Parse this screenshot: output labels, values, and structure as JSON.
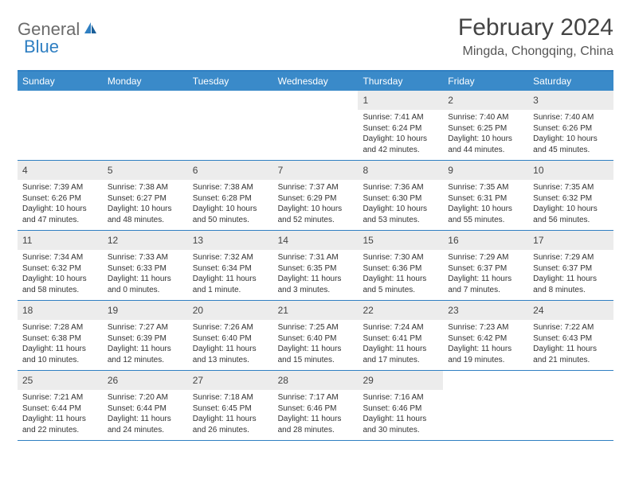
{
  "logo": {
    "text1": "General",
    "text2": "Blue"
  },
  "title": "February 2024",
  "location": "Mingda, Chongqing, China",
  "colors": {
    "header_bg": "#3a8ac9",
    "border": "#2f7fc2",
    "daynum_bg": "#ececec",
    "text": "#333333",
    "logo_gray": "#6b6b6b",
    "logo_blue": "#2f7fc2"
  },
  "dayNames": [
    "Sunday",
    "Monday",
    "Tuesday",
    "Wednesday",
    "Thursday",
    "Friday",
    "Saturday"
  ],
  "weeks": [
    [
      {
        "day": "",
        "sunrise": "",
        "sunset": "",
        "daylight": ""
      },
      {
        "day": "",
        "sunrise": "",
        "sunset": "",
        "daylight": ""
      },
      {
        "day": "",
        "sunrise": "",
        "sunset": "",
        "daylight": ""
      },
      {
        "day": "",
        "sunrise": "",
        "sunset": "",
        "daylight": ""
      },
      {
        "day": "1",
        "sunrise": "Sunrise: 7:41 AM",
        "sunset": "Sunset: 6:24 PM",
        "daylight": "Daylight: 10 hours and 42 minutes."
      },
      {
        "day": "2",
        "sunrise": "Sunrise: 7:40 AM",
        "sunset": "Sunset: 6:25 PM",
        "daylight": "Daylight: 10 hours and 44 minutes."
      },
      {
        "day": "3",
        "sunrise": "Sunrise: 7:40 AM",
        "sunset": "Sunset: 6:26 PM",
        "daylight": "Daylight: 10 hours and 45 minutes."
      }
    ],
    [
      {
        "day": "4",
        "sunrise": "Sunrise: 7:39 AM",
        "sunset": "Sunset: 6:26 PM",
        "daylight": "Daylight: 10 hours and 47 minutes."
      },
      {
        "day": "5",
        "sunrise": "Sunrise: 7:38 AM",
        "sunset": "Sunset: 6:27 PM",
        "daylight": "Daylight: 10 hours and 48 minutes."
      },
      {
        "day": "6",
        "sunrise": "Sunrise: 7:38 AM",
        "sunset": "Sunset: 6:28 PM",
        "daylight": "Daylight: 10 hours and 50 minutes."
      },
      {
        "day": "7",
        "sunrise": "Sunrise: 7:37 AM",
        "sunset": "Sunset: 6:29 PM",
        "daylight": "Daylight: 10 hours and 52 minutes."
      },
      {
        "day": "8",
        "sunrise": "Sunrise: 7:36 AM",
        "sunset": "Sunset: 6:30 PM",
        "daylight": "Daylight: 10 hours and 53 minutes."
      },
      {
        "day": "9",
        "sunrise": "Sunrise: 7:35 AM",
        "sunset": "Sunset: 6:31 PM",
        "daylight": "Daylight: 10 hours and 55 minutes."
      },
      {
        "day": "10",
        "sunrise": "Sunrise: 7:35 AM",
        "sunset": "Sunset: 6:32 PM",
        "daylight": "Daylight: 10 hours and 56 minutes."
      }
    ],
    [
      {
        "day": "11",
        "sunrise": "Sunrise: 7:34 AM",
        "sunset": "Sunset: 6:32 PM",
        "daylight": "Daylight: 10 hours and 58 minutes."
      },
      {
        "day": "12",
        "sunrise": "Sunrise: 7:33 AM",
        "sunset": "Sunset: 6:33 PM",
        "daylight": "Daylight: 11 hours and 0 minutes."
      },
      {
        "day": "13",
        "sunrise": "Sunrise: 7:32 AM",
        "sunset": "Sunset: 6:34 PM",
        "daylight": "Daylight: 11 hours and 1 minute."
      },
      {
        "day": "14",
        "sunrise": "Sunrise: 7:31 AM",
        "sunset": "Sunset: 6:35 PM",
        "daylight": "Daylight: 11 hours and 3 minutes."
      },
      {
        "day": "15",
        "sunrise": "Sunrise: 7:30 AM",
        "sunset": "Sunset: 6:36 PM",
        "daylight": "Daylight: 11 hours and 5 minutes."
      },
      {
        "day": "16",
        "sunrise": "Sunrise: 7:29 AM",
        "sunset": "Sunset: 6:37 PM",
        "daylight": "Daylight: 11 hours and 7 minutes."
      },
      {
        "day": "17",
        "sunrise": "Sunrise: 7:29 AM",
        "sunset": "Sunset: 6:37 PM",
        "daylight": "Daylight: 11 hours and 8 minutes."
      }
    ],
    [
      {
        "day": "18",
        "sunrise": "Sunrise: 7:28 AM",
        "sunset": "Sunset: 6:38 PM",
        "daylight": "Daylight: 11 hours and 10 minutes."
      },
      {
        "day": "19",
        "sunrise": "Sunrise: 7:27 AM",
        "sunset": "Sunset: 6:39 PM",
        "daylight": "Daylight: 11 hours and 12 minutes."
      },
      {
        "day": "20",
        "sunrise": "Sunrise: 7:26 AM",
        "sunset": "Sunset: 6:40 PM",
        "daylight": "Daylight: 11 hours and 13 minutes."
      },
      {
        "day": "21",
        "sunrise": "Sunrise: 7:25 AM",
        "sunset": "Sunset: 6:40 PM",
        "daylight": "Daylight: 11 hours and 15 minutes."
      },
      {
        "day": "22",
        "sunrise": "Sunrise: 7:24 AM",
        "sunset": "Sunset: 6:41 PM",
        "daylight": "Daylight: 11 hours and 17 minutes."
      },
      {
        "day": "23",
        "sunrise": "Sunrise: 7:23 AM",
        "sunset": "Sunset: 6:42 PM",
        "daylight": "Daylight: 11 hours and 19 minutes."
      },
      {
        "day": "24",
        "sunrise": "Sunrise: 7:22 AM",
        "sunset": "Sunset: 6:43 PM",
        "daylight": "Daylight: 11 hours and 21 minutes."
      }
    ],
    [
      {
        "day": "25",
        "sunrise": "Sunrise: 7:21 AM",
        "sunset": "Sunset: 6:44 PM",
        "daylight": "Daylight: 11 hours and 22 minutes."
      },
      {
        "day": "26",
        "sunrise": "Sunrise: 7:20 AM",
        "sunset": "Sunset: 6:44 PM",
        "daylight": "Daylight: 11 hours and 24 minutes."
      },
      {
        "day": "27",
        "sunrise": "Sunrise: 7:18 AM",
        "sunset": "Sunset: 6:45 PM",
        "daylight": "Daylight: 11 hours and 26 minutes."
      },
      {
        "day": "28",
        "sunrise": "Sunrise: 7:17 AM",
        "sunset": "Sunset: 6:46 PM",
        "daylight": "Daylight: 11 hours and 28 minutes."
      },
      {
        "day": "29",
        "sunrise": "Sunrise: 7:16 AM",
        "sunset": "Sunset: 6:46 PM",
        "daylight": "Daylight: 11 hours and 30 minutes."
      },
      {
        "day": "",
        "sunrise": "",
        "sunset": "",
        "daylight": ""
      },
      {
        "day": "",
        "sunrise": "",
        "sunset": "",
        "daylight": ""
      }
    ]
  ]
}
